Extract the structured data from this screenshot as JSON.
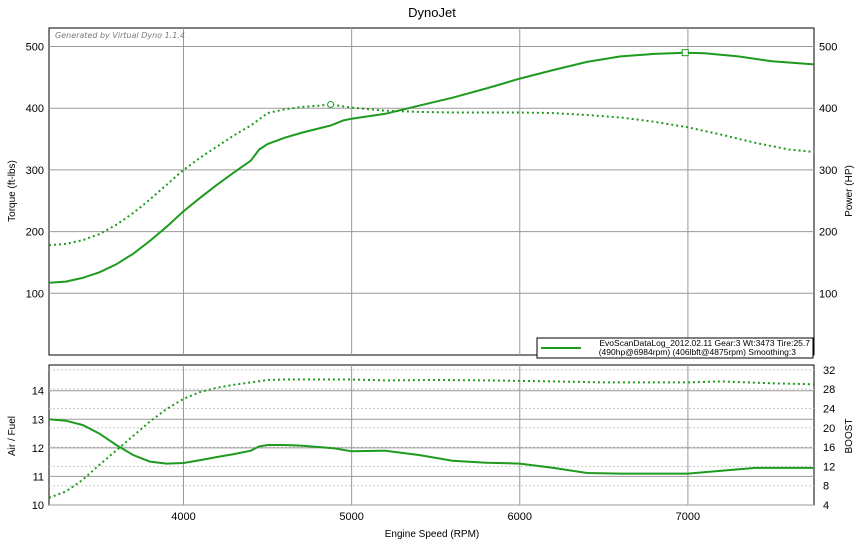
{
  "chart_data": [
    {
      "type": "line",
      "title": "DynoJet",
      "watermark": "Generated by Virtual Dyno 1.1.4",
      "ylabel": "Torque (ft-lbs)",
      "y2label": "Power (HP)",
      "xlim": [
        3200,
        7750
      ],
      "ylim": [
        0,
        530
      ],
      "y2lim": [
        0,
        530
      ],
      "x_ticks": [
        4000,
        5000,
        6000,
        7000
      ],
      "y_ticks": [
        "100",
        "200",
        "300",
        "400",
        "500"
      ],
      "y2_ticks": [
        "100",
        "200",
        "300",
        "400",
        "500"
      ],
      "color": "#1e9a1e",
      "legend": {
        "placement": "bottom-right",
        "line1": "EvoScanDataLog_2012.02.11 Gear:3 Wt:3473 Tire:25.7",
        "line2": "(490hp@6984rpm) (406lbft@4875rpm) Smoothing:3"
      },
      "series": [
        {
          "name": "Power",
          "style": "solid",
          "axis": "y2",
          "x": [
            3200,
            3300,
            3400,
            3500,
            3600,
            3700,
            3800,
            3900,
            4000,
            4100,
            4200,
            4300,
            4400,
            4450,
            4500,
            4600,
            4700,
            4800,
            4875,
            4950,
            5000,
            5200,
            5400,
            5600,
            5800,
            6000,
            6200,
            6400,
            6600,
            6800,
            6984,
            7100,
            7300,
            7500,
            7750
          ],
          "values": [
            117,
            119,
            125,
            134,
            147,
            164,
            185,
            208,
            233,
            255,
            276,
            296,
            315,
            333,
            342,
            352,
            360,
            367,
            372,
            380,
            383,
            391,
            404,
            417,
            432,
            448,
            462,
            475,
            484,
            488,
            490,
            489,
            484,
            476,
            471
          ]
        },
        {
          "name": "Torque",
          "style": "dotted",
          "axis": "y",
          "x": [
            3200,
            3300,
            3400,
            3500,
            3600,
            3700,
            3800,
            3900,
            4000,
            4100,
            4200,
            4300,
            4400,
            4450,
            4500,
            4600,
            4700,
            4800,
            4875,
            5000,
            5200,
            5400,
            5600,
            5800,
            6000,
            6200,
            6400,
            6600,
            6800,
            7000,
            7200,
            7400,
            7600,
            7750
          ],
          "values": [
            178,
            180,
            186,
            196,
            211,
            230,
            252,
            276,
            300,
            320,
            338,
            356,
            372,
            382,
            392,
            398,
            402,
            404,
            406,
            401,
            396,
            394,
            393,
            393,
            393,
            392,
            389,
            385,
            378,
            369,
            357,
            344,
            333,
            329
          ]
        }
      ]
    },
    {
      "type": "line",
      "xlabel": "Engine Speed (RPM)",
      "ylabel": "Air / Fuel",
      "y2label": "BOOST",
      "xlim": [
        3200,
        7750
      ],
      "ylim": [
        10,
        14.9
      ],
      "y2lim": [
        4,
        33
      ],
      "x_ticks": [
        "4000",
        "5000",
        "6000",
        "7000"
      ],
      "y_ticks": [
        "10",
        "11",
        "12",
        "13",
        "14"
      ],
      "y2_ticks": [
        "4",
        "8",
        "12",
        "16",
        "20",
        "24",
        "28",
        "32"
      ],
      "series": [
        {
          "name": "Air / Fuel",
          "style": "solid",
          "axis": "y",
          "x": [
            3200,
            3300,
            3400,
            3500,
            3600,
            3700,
            3800,
            3900,
            4000,
            4100,
            4200,
            4300,
            4400,
            4450,
            4500,
            4600,
            4700,
            4800,
            4900,
            5000,
            5200,
            5400,
            5600,
            5800,
            6000,
            6200,
            6400,
            6600,
            6800,
            7000,
            7200,
            7400,
            7600,
            7750
          ],
          "values": [
            13.0,
            12.95,
            12.8,
            12.5,
            12.1,
            11.75,
            11.52,
            11.45,
            11.47,
            11.57,
            11.68,
            11.78,
            11.9,
            12.05,
            12.1,
            12.1,
            12.08,
            12.03,
            11.98,
            11.88,
            11.9,
            11.75,
            11.55,
            11.48,
            11.45,
            11.3,
            11.12,
            11.1,
            11.1,
            11.1,
            11.2,
            11.3,
            11.3,
            11.3
          ]
        },
        {
          "name": "BOOST",
          "style": "dotted",
          "axis": "y2",
          "x": [
            3200,
            3300,
            3400,
            3500,
            3600,
            3700,
            3800,
            3900,
            4000,
            4100,
            4200,
            4300,
            4400,
            4500,
            4600,
            4800,
            5000,
            5200,
            5500,
            5800,
            6000,
            6200,
            6500,
            7000,
            7200,
            7500,
            7750
          ],
          "values": [
            5.5,
            6.8,
            9.2,
            12.3,
            15.3,
            18.3,
            21.3,
            23.9,
            26.0,
            27.4,
            28.3,
            28.9,
            29.4,
            29.9,
            30.0,
            30.0,
            30.0,
            29.8,
            29.9,
            29.8,
            29.7,
            29.6,
            29.4,
            29.4,
            29.6,
            29.2,
            29.0
          ]
        }
      ]
    }
  ]
}
